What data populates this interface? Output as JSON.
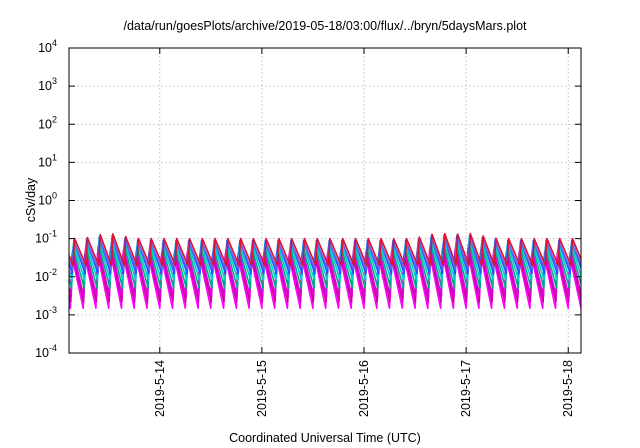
{
  "chart_data": {
    "type": "line",
    "title": "/data/run/goesPlots/archive/2019-05-18/03:00/flux/../bryn/5daysMars.plot",
    "xlabel": "Coordinated Universal Time (UTC)",
    "ylabel": "cSv/day",
    "x_range": [
      "2019-05-13T02:40",
      "2019-05-18T03:00"
    ],
    "x_ticks": [
      "2019-5-14",
      "2019-5-15",
      "2019-5-16",
      "2019-5-17",
      "2019-5-18"
    ],
    "y_scale": "log",
    "ylim": [
      0.0001,
      10000
    ],
    "y_ticks": [
      {
        "base": "10",
        "exp": "-4"
      },
      {
        "base": "10",
        "exp": "-3"
      },
      {
        "base": "10",
        "exp": "-2"
      },
      {
        "base": "10",
        "exp": "-1"
      },
      {
        "base": "10",
        "exp": "0"
      },
      {
        "base": "10",
        "exp": "1"
      },
      {
        "base": "10",
        "exp": "2"
      },
      {
        "base": "10",
        "exp": "3"
      },
      {
        "base": "10",
        "exp": "4"
      }
    ],
    "grid": true,
    "legend": "none",
    "sawtooth_period_hours": 3.0,
    "series": [
      {
        "color": "#ff00ff",
        "peak": 0.035,
        "trough": 0.0015
      },
      {
        "color": "#cc0099",
        "peak": 0.042,
        "trough": 0.0022
      },
      {
        "color": "#dd00dd",
        "peak": 0.05,
        "trough": 0.003
      },
      {
        "color": "#00aa88",
        "peak": 0.06,
        "trough": 0.005
      },
      {
        "color": "#00cccc",
        "peak": 0.075,
        "trough": 0.008
      },
      {
        "color": "#2255ff",
        "peak": 0.09,
        "trough": 0.012
      },
      {
        "color": "#6666ee",
        "peak": 0.08,
        "trough": 0.016
      },
      {
        "color": "#dd1133",
        "peak": 0.1,
        "trough": 0.02
      }
    ],
    "event_peaks": [
      {
        "time": "2019-05-13T12:00",
        "value": 0.13
      },
      {
        "time": "2019-05-16T17:30",
        "value": 0.12
      },
      {
        "time": "2019-05-17T00:40",
        "value": 0.11
      }
    ]
  }
}
